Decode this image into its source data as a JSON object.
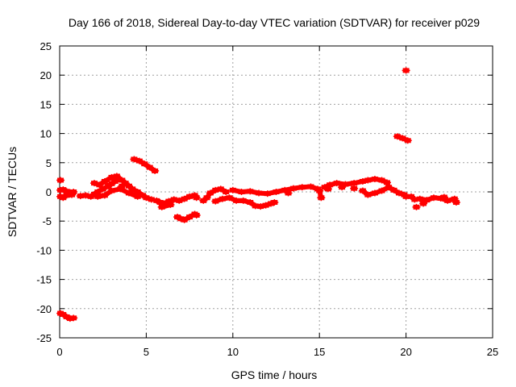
{
  "chart_data": {
    "type": "scatter",
    "title": "Day 166 of 2018, Sidereal Day-to-day VTEC variation (SDTVAR) for receiver p029",
    "xlabel": "GPS time / hours",
    "ylabel": "SDTVAR / TECUs",
    "xlim": [
      0,
      25
    ],
    "ylim": [
      -25,
      25
    ],
    "xticks": [
      0,
      5,
      10,
      15,
      20,
      25
    ],
    "yticks": [
      -25,
      -20,
      -15,
      -10,
      -5,
      0,
      5,
      10,
      15,
      20,
      25
    ],
    "grid": true,
    "marker_color": "#ff0000",
    "series": [
      {
        "name": "SDTVAR",
        "points": [
          [
            0.05,
            2.0
          ],
          [
            0.05,
            0.3
          ],
          [
            0.2,
            0.4
          ],
          [
            0.4,
            0.1
          ],
          [
            0.6,
            -0.1
          ],
          [
            0.8,
            0.0
          ],
          [
            0.05,
            -0.8
          ],
          [
            0.2,
            -1.0
          ],
          [
            0.4,
            -0.6
          ],
          [
            0.7,
            -0.5
          ],
          [
            0.05,
            -20.8
          ],
          [
            0.2,
            -21.0
          ],
          [
            0.4,
            -21.4
          ],
          [
            0.6,
            -21.7
          ],
          [
            0.8,
            -21.6
          ],
          [
            1.2,
            -0.7
          ],
          [
            1.5,
            -0.6
          ],
          [
            1.8,
            -0.8
          ],
          [
            2.0,
            -0.4
          ],
          [
            2.2,
            0.0
          ],
          [
            2.5,
            0.5
          ],
          [
            2.8,
            1.0
          ],
          [
            3.0,
            1.4
          ],
          [
            3.2,
            1.8
          ],
          [
            3.4,
            2.2
          ],
          [
            3.6,
            2.0
          ],
          [
            3.8,
            1.5
          ],
          [
            4.0,
            1.0
          ],
          [
            4.2,
            0.5
          ],
          [
            4.5,
            0.0
          ],
          [
            4.8,
            -0.6
          ],
          [
            5.0,
            -1.0
          ],
          [
            5.3,
            -1.3
          ],
          [
            2.0,
            1.5
          ],
          [
            2.3,
            1.2
          ],
          [
            2.6,
            1.8
          ],
          [
            3.0,
            2.5
          ],
          [
            3.3,
            2.7
          ],
          [
            3.6,
            1.0
          ],
          [
            2.2,
            -0.8
          ],
          [
            2.6,
            -0.6
          ],
          [
            3.0,
            0.2
          ],
          [
            3.5,
            0.5
          ],
          [
            4.0,
            -0.2
          ],
          [
            4.5,
            -0.8
          ],
          [
            4.3,
            5.6
          ],
          [
            4.6,
            5.3
          ],
          [
            4.9,
            4.8
          ],
          [
            5.2,
            4.2
          ],
          [
            5.5,
            3.6
          ],
          [
            5.6,
            -1.5
          ],
          [
            5.8,
            -1.8
          ],
          [
            6.0,
            -2.0
          ],
          [
            6.3,
            -1.6
          ],
          [
            6.6,
            -1.3
          ],
          [
            6.9,
            -1.5
          ],
          [
            7.2,
            -1.2
          ],
          [
            7.5,
            -0.8
          ],
          [
            7.8,
            -0.6
          ],
          [
            7.9,
            -1.0
          ],
          [
            5.9,
            -2.6
          ],
          [
            6.4,
            -2.2
          ],
          [
            6.8,
            -4.3
          ],
          [
            7.0,
            -4.6
          ],
          [
            7.2,
            -4.8
          ],
          [
            7.5,
            -4.3
          ],
          [
            7.8,
            -3.8
          ],
          [
            7.9,
            -4.0
          ],
          [
            8.3,
            -1.5
          ],
          [
            8.5,
            -1.0
          ],
          [
            8.7,
            -0.2
          ],
          [
            9.0,
            0.3
          ],
          [
            9.3,
            0.5
          ],
          [
            9.6,
            0.0
          ],
          [
            9.0,
            -1.6
          ],
          [
            9.4,
            -1.2
          ],
          [
            9.8,
            -1.0
          ],
          [
            10.2,
            -1.5
          ],
          [
            10.6,
            -1.5
          ],
          [
            11.0,
            -1.8
          ],
          [
            11.3,
            -2.4
          ],
          [
            11.6,
            -2.5
          ],
          [
            11.9,
            -2.3
          ],
          [
            12.2,
            -2.0
          ],
          [
            12.4,
            -1.8
          ],
          [
            10.0,
            0.3
          ],
          [
            10.5,
            0.0
          ],
          [
            11.0,
            0.1
          ],
          [
            11.5,
            -0.2
          ],
          [
            12.0,
            -0.3
          ],
          [
            12.5,
            0.0
          ],
          [
            13.0,
            0.3
          ],
          [
            13.5,
            0.6
          ],
          [
            14.0,
            0.8
          ],
          [
            14.5,
            0.9
          ],
          [
            14.9,
            0.5
          ],
          [
            13.2,
            -0.2
          ],
          [
            15.0,
            0.2
          ],
          [
            15.1,
            -1.0
          ],
          [
            15.3,
            0.8
          ],
          [
            15.6,
            1.2
          ],
          [
            16.0,
            1.5
          ],
          [
            16.5,
            1.3
          ],
          [
            17.0,
            1.5
          ],
          [
            17.5,
            1.8
          ],
          [
            17.8,
            2.0
          ],
          [
            18.2,
            2.2
          ],
          [
            18.6,
            2.0
          ],
          [
            18.9,
            1.6
          ],
          [
            17.5,
            0.2
          ],
          [
            17.8,
            -0.5
          ],
          [
            18.2,
            -0.2
          ],
          [
            18.6,
            0.2
          ],
          [
            19.0,
            0.8
          ],
          [
            19.3,
            0.3
          ],
          [
            19.6,
            -0.2
          ],
          [
            19.9,
            -0.5
          ],
          [
            20.0,
            -0.8
          ],
          [
            15.5,
            0.5
          ],
          [
            16.3,
            0.8
          ],
          [
            17.0,
            0.6
          ],
          [
            19.5,
            9.5
          ],
          [
            19.8,
            9.2
          ],
          [
            20.1,
            8.8
          ],
          [
            20.0,
            20.8
          ],
          [
            20.3,
            -0.8
          ],
          [
            20.5,
            -1.3
          ],
          [
            20.6,
            -2.6
          ],
          [
            20.8,
            -1.2
          ],
          [
            21.2,
            -1.4
          ],
          [
            21.6,
            -1.0
          ],
          [
            22.0,
            -1.1
          ],
          [
            22.4,
            -1.5
          ],
          [
            22.8,
            -1.2
          ],
          [
            22.9,
            -1.8
          ],
          [
            21.0,
            -2.0
          ],
          [
            22.2,
            -0.9
          ]
        ]
      }
    ]
  }
}
